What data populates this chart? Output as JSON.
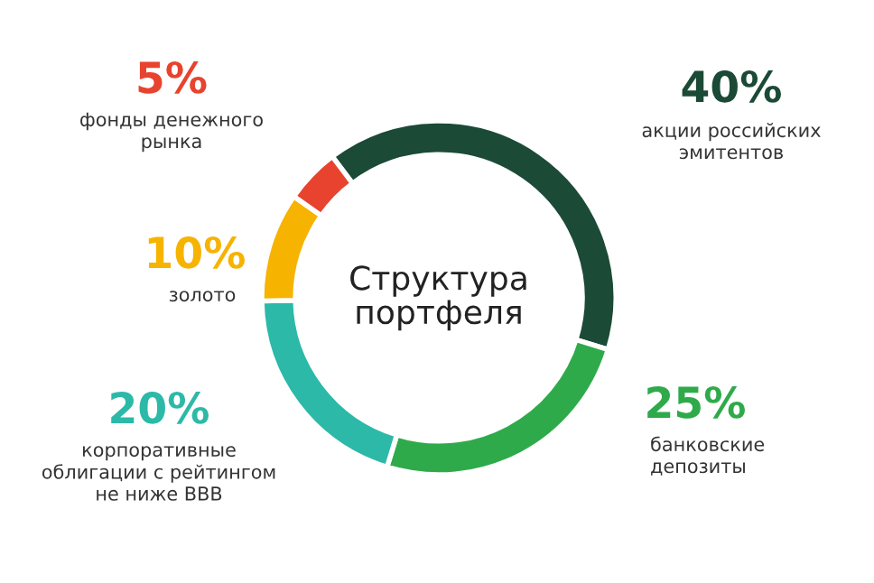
{
  "chart_data": {
    "type": "donut",
    "title": "Структура\nпортфеля",
    "categories": [
      "акции российских\nэмитентов",
      "банковские\nдепозиты",
      "корпоративные\nоблигации с рейтингом\nне ниже BBB",
      "золото",
      "фонды денежного\nрынка"
    ],
    "values": [
      40,
      25,
      20,
      10,
      5
    ],
    "value_labels": [
      "40%",
      "25%",
      "20%",
      "10%",
      "5%"
    ],
    "colors": [
      "#1b4a36",
      "#2faa4b",
      "#2cb9a8",
      "#f6b300",
      "#e8432e"
    ]
  }
}
